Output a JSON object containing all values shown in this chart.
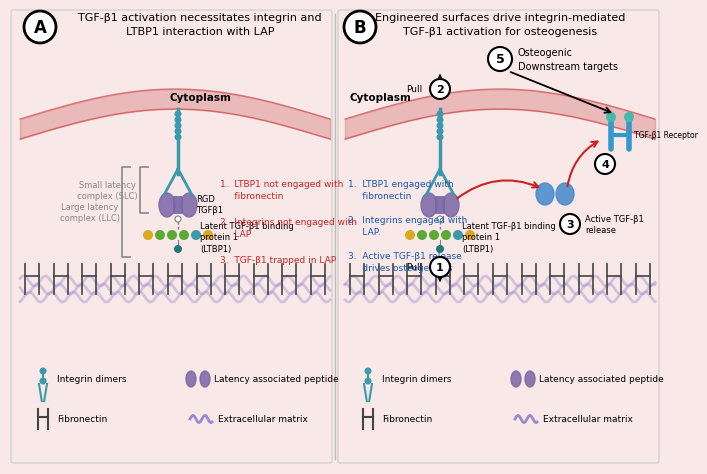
{
  "bg_color": "#f8e8e8",
  "title_A": "TGF-β1 activation necessitates integrin and\nLTBP1 interaction with LAP",
  "title_B": "Engineered surfaces drive integrin-mediated\nTGF-β1 activation for osteogenesis",
  "cytoplasm_A": "Cytoplasm",
  "cytoplasm_B": "Cytoplasm",
  "slc_label": "Small latency\ncomplex (SLC)",
  "llc_label": "Large latency\ncomplex (LLC)",
  "rgd_label": "RGD",
  "tgfb1_label": "TGFβ1",
  "ltbp1_label": "Latent TGF-β1 binding\nprotein 1\n(LTBP1)",
  "red_texts": [
    "1.  LTBP1 not engaged with\n     fibronectin",
    "2.  Integrins not engaged with\n     LAP",
    "3.  TGF-β1 trapped in LAP"
  ],
  "blue_texts": [
    "1.  LTBP1 engaged with\n     fibronectin",
    "2.  Integrins engaged with\n     LAP.",
    "3.  Active TGF-β1 release\n     drives osteogenesis"
  ],
  "osteogenic_label": "Osteogenic\nDownstream targets",
  "receptor_label": "TGF-β1 Receptor",
  "active_tgfb_label": "Active TGF-β1\nrelease",
  "pull_label": "Pull",
  "legend_integrin": "Integrin dimers",
  "legend_lap": "Latency associated peptide",
  "legend_fibronectin": "Fibronectin",
  "legend_ecm": "Extracellular matrix",
  "integrin_color": "#3a9aab",
  "lap_color": "#7a65a5",
  "teal_color": "#3a9aab",
  "green_color": "#5aaa35",
  "yellow_color": "#dda820",
  "dark_teal": "#1a7a7a",
  "membrane_color": "#c84040",
  "ecm_color": "#9988cc",
  "fibronectin_color": "#444444",
  "red_text_color": "#cc2222",
  "blue_text_color": "#1a55aa",
  "receptor_blue": "#3399cc",
  "active_blue": "#4488cc"
}
